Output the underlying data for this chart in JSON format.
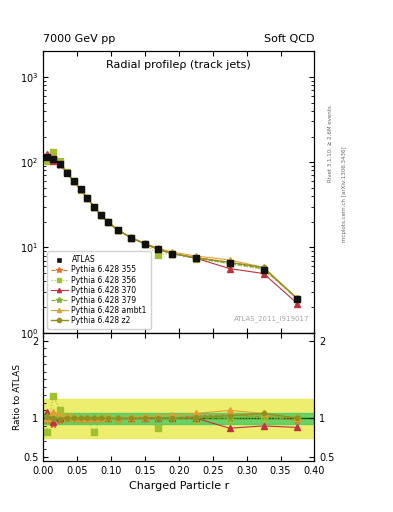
{
  "title": "Radial profileρ (track jets)",
  "top_left_label": "7000 GeV pp",
  "top_right_label": "Soft QCD",
  "xlabel": "Charged Particle r",
  "ylabel_ratio": "Ratio to ATLAS",
  "right_label_top": "Rivet 3.1.10, ≥ 2.6M events",
  "right_label_bottom": "mcplots.cern.ch [arXiv:1306.3436]",
  "watermark": "ATLAS_2011_I919017",
  "xdata": [
    0.005,
    0.015,
    0.025,
    0.035,
    0.045,
    0.055,
    0.065,
    0.075,
    0.085,
    0.095,
    0.11,
    0.13,
    0.15,
    0.17,
    0.19,
    0.225,
    0.275,
    0.325,
    0.375
  ],
  "atlas_y": [
    115,
    110,
    95,
    75,
    60,
    48,
    38,
    30,
    24,
    20,
    16,
    13,
    11,
    9.5,
    8.5,
    7.5,
    6.5,
    5.5,
    2.5
  ],
  "atlas_yerr": [
    5,
    4,
    3.5,
    2.5,
    2,
    1.5,
    1.2,
    1.0,
    0.8,
    0.7,
    0.5,
    0.4,
    0.35,
    0.3,
    0.28,
    0.25,
    0.22,
    0.2,
    0.15
  ],
  "series": [
    {
      "label": "ATLAS",
      "color": "#111111",
      "marker": "s",
      "markersize": 4,
      "linestyle": "none",
      "linewidth": 0,
      "scale": [
        1,
        1,
        1,
        1,
        1,
        1,
        1,
        1,
        1,
        1,
        1,
        1,
        1,
        1,
        1,
        1,
        1,
        1,
        1
      ],
      "ratio": [
        1,
        1,
        1,
        1,
        1,
        1,
        1,
        1,
        1,
        1,
        1,
        1,
        1,
        1,
        1,
        1,
        1,
        1,
        1
      ]
    },
    {
      "label": "Pythia 6.428 355",
      "color": "#e07030",
      "marker": "*",
      "markersize": 5,
      "linestyle": "--",
      "linewidth": 0.8,
      "scale": [
        1.0,
        0.97,
        0.98,
        1.0,
        1.0,
        1.0,
        1.0,
        1.0,
        1.0,
        1.0,
        1.0,
        1.0,
        1.0,
        1.0,
        1.0,
        1.02,
        1.03,
        1.02,
        1.0
      ],
      "ratio": [
        0.97,
        0.92,
        0.97,
        1.0,
        1.0,
        1.0,
        1.0,
        1.0,
        1.0,
        1.0,
        1.0,
        1.0,
        1.02,
        1.0,
        1.0,
        1.03,
        1.04,
        1.02,
        0.97
      ]
    },
    {
      "label": "Pythia 6.428 356",
      "color": "#a0c030",
      "marker": "s",
      "markersize": 4,
      "linestyle": ":",
      "linewidth": 0.8,
      "scale": [
        0.9,
        1.2,
        1.08,
        1.03,
        1.0,
        0.99,
        0.99,
        1.0,
        1.0,
        1.0,
        0.99,
        0.99,
        1.0,
        0.87,
        1.0,
        0.98,
        0.99,
        1.0,
        1.0
      ],
      "ratio": [
        0.82,
        1.28,
        1.1,
        1.03,
        1.0,
        0.99,
        0.99,
        0.82,
        1.0,
        1.0,
        0.99,
        0.99,
        1.0,
        0.87,
        1.0,
        0.98,
        0.99,
        1.0,
        1.0
      ]
    },
    {
      "label": "Pythia 6.428 370",
      "color": "#c03040",
      "marker": "^",
      "markersize": 4,
      "linestyle": "-",
      "linewidth": 0.8,
      "scale": [
        1.08,
        0.95,
        1.0,
        1.01,
        1.0,
        1.0,
        1.0,
        1.0,
        1.0,
        1.0,
        1.0,
        1.0,
        1.0,
        1.0,
        1.0,
        1.0,
        0.87,
        0.9,
        0.88
      ],
      "ratio": [
        1.08,
        0.95,
        1.0,
        1.01,
        1.0,
        1.0,
        1.0,
        1.0,
        1.0,
        1.0,
        1.0,
        1.0,
        1.0,
        1.0,
        1.0,
        1.0,
        0.87,
        0.9,
        0.88
      ]
    },
    {
      "label": "Pythia 6.428 379",
      "color": "#80b030",
      "marker": "*",
      "markersize": 5,
      "linestyle": "--",
      "linewidth": 0.8,
      "scale": [
        1.03,
        1.0,
        1.01,
        0.99,
        1.0,
        1.0,
        1.0,
        1.0,
        1.0,
        1.0,
        1.0,
        1.0,
        1.0,
        1.0,
        1.0,
        1.0,
        1.0,
        1.03,
        1.01
      ],
      "ratio": [
        1.03,
        1.0,
        1.01,
        0.99,
        1.0,
        1.0,
        1.0,
        1.0,
        1.0,
        1.0,
        1.0,
        1.0,
        1.0,
        1.0,
        1.0,
        1.0,
        1.0,
        1.03,
        1.01
      ]
    },
    {
      "label": "Pythia 6.428 ambt1",
      "color": "#e0a030",
      "marker": "^",
      "markersize": 4,
      "linestyle": "-",
      "linewidth": 0.8,
      "scale": [
        1.0,
        1.08,
        1.04,
        1.01,
        1.0,
        1.0,
        1.0,
        1.0,
        1.0,
        1.01,
        1.0,
        1.01,
        1.02,
        1.03,
        1.04,
        1.06,
        1.1,
        1.06,
        1.0
      ],
      "ratio": [
        1.0,
        1.08,
        1.04,
        1.01,
        1.0,
        1.0,
        1.0,
        1.0,
        1.0,
        1.01,
        1.0,
        1.01,
        1.02,
        1.03,
        1.04,
        1.06,
        1.1,
        1.06,
        1.0
      ]
    },
    {
      "label": "Pythia 6.428 z2",
      "color": "#909020",
      "marker": "o",
      "markersize": 3,
      "linestyle": "-",
      "linewidth": 1.0,
      "scale": [
        1.01,
        1.0,
        0.99,
        1.0,
        1.0,
        1.0,
        1.0,
        1.0,
        1.0,
        1.0,
        1.0,
        1.0,
        1.0,
        1.0,
        1.0,
        1.01,
        1.03,
        1.06,
        1.0
      ],
      "ratio": [
        1.01,
        1.0,
        0.99,
        1.0,
        1.0,
        1.0,
        1.0,
        1.0,
        1.0,
        1.0,
        1.0,
        1.0,
        1.0,
        1.0,
        1.0,
        1.01,
        1.03,
        1.06,
        1.0
      ]
    }
  ],
  "band_yellow_lo": 0.75,
  "band_yellow_hi": 1.25,
  "band_green_lo": 0.93,
  "band_green_hi": 1.07,
  "ylim_main": [
    1.0,
    2000
  ],
  "ylim_ratio": [
    0.45,
    2.1
  ],
  "yticks_ratio": [
    0.5,
    1.0,
    2.0
  ],
  "ytick_labels_ratio": [
    "0.5",
    "1",
    "2"
  ],
  "xlim": [
    0.0,
    0.4
  ]
}
